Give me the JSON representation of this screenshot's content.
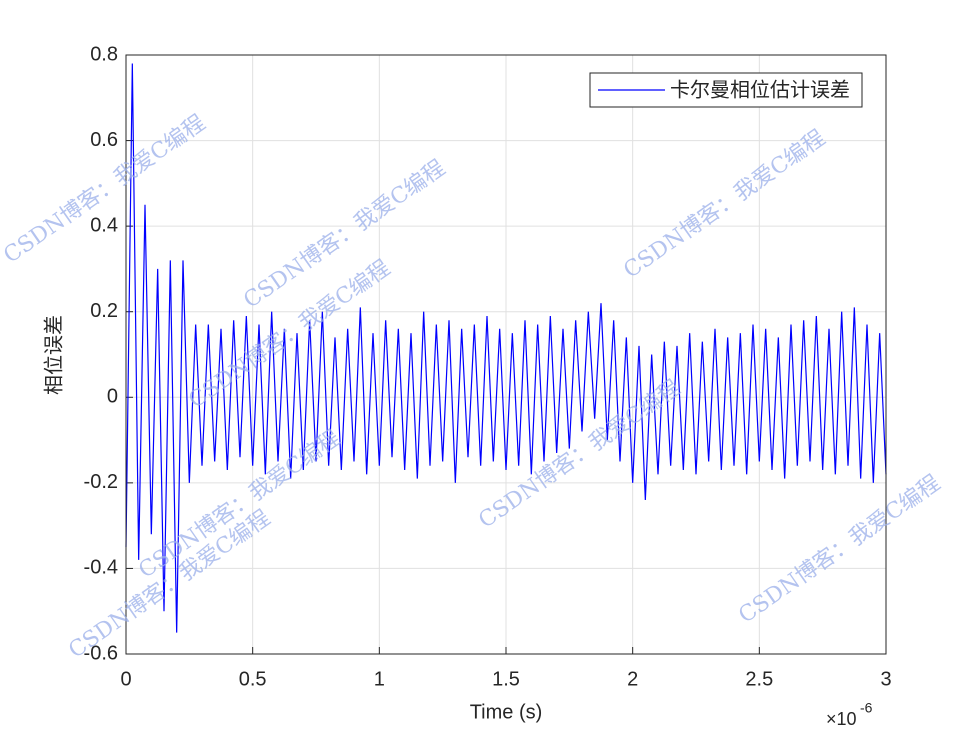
{
  "chart_data": {
    "type": "line",
    "x_label": "Time (s)",
    "y_label": "相位误差",
    "x_multiplier": "×10",
    "x_exponent": "-6",
    "watermark": "CSDN博客：我爱C编程",
    "legend": "top-right",
    "grid": true,
    "xlim": [
      0,
      3e-06
    ],
    "ylim": [
      -0.6,
      0.8
    ],
    "xticks": [
      0,
      {
        "value": 5e-07,
        "label": "0.5"
      },
      {
        "value": 1e-06,
        "label": "1"
      },
      {
        "value": 1.5e-06,
        "label": "1.5"
      },
      {
        "value": 2e-06,
        "label": "2"
      },
      {
        "value": 2.5e-06,
        "label": "2.5"
      },
      {
        "value": 3e-06,
        "label": "3"
      }
    ],
    "yticks": [
      -0.6,
      -0.4,
      -0.2,
      0,
      0.2,
      0.4,
      0.6,
      0.8
    ],
    "x": [
      0,
      2.5e-08,
      5e-08,
      7.5e-08,
      1e-07,
      1.25e-07,
      1.5e-07,
      1.75e-07,
      2e-07,
      2.25e-07,
      2.5e-07,
      2.75e-07,
      3e-07,
      3.25e-07,
      3.5e-07,
      3.75e-07,
      4e-07,
      4.25e-07,
      4.5e-07,
      4.75e-07,
      5e-07,
      5.25e-07,
      5.5e-07,
      5.75e-07,
      6e-07,
      6.25e-07,
      6.5e-07,
      6.75e-07,
      7e-07,
      7.25e-07,
      7.5e-07,
      7.75e-07,
      8e-07,
      8.25e-07,
      8.5e-07,
      8.75e-07,
      9e-07,
      9.25e-07,
      9.5e-07,
      9.75e-07,
      1e-06,
      1.025e-06,
      1.05e-06,
      1.075e-06,
      1.1e-06,
      1.125e-06,
      1.15e-06,
      1.175e-06,
      1.2e-06,
      1.225e-06,
      1.25e-06,
      1.275e-06,
      1.3e-06,
      1.325e-06,
      1.35e-06,
      1.375e-06,
      1.4e-06,
      1.425e-06,
      1.45e-06,
      1.475e-06,
      1.5e-06,
      1.525e-06,
      1.55e-06,
      1.575e-06,
      1.6e-06,
      1.625e-06,
      1.65e-06,
      1.675e-06,
      1.7e-06,
      1.725e-06,
      1.75e-06,
      1.775e-06,
      1.8e-06,
      1.825e-06,
      1.85e-06,
      1.875e-06,
      1.9e-06,
      1.925e-06,
      1.95e-06,
      1.975e-06,
      2e-06,
      2.025e-06,
      2.05e-06,
      2.075e-06,
      2.1e-06,
      2.125e-06,
      2.15e-06,
      2.175e-06,
      2.2e-06,
      2.225e-06,
      2.25e-06,
      2.275e-06,
      2.3e-06,
      2.325e-06,
      2.35e-06,
      2.375e-06,
      2.4e-06,
      2.425e-06,
      2.45e-06,
      2.475e-06,
      2.5e-06,
      2.525e-06,
      2.55e-06,
      2.575e-06,
      2.6e-06,
      2.625e-06,
      2.65e-06,
      2.675e-06,
      2.7e-06,
      2.725e-06,
      2.75e-06,
      2.775e-06,
      2.8e-06,
      2.825e-06,
      2.85e-06,
      2.875e-06,
      2.9e-06,
      2.925e-06,
      2.95e-06,
      2.975e-06,
      3e-06
    ],
    "series": [
      {
        "name": "卡尔曼相位估计误差",
        "color": "#0000ff",
        "values": [
          -0.35,
          0.78,
          -0.38,
          0.45,
          -0.32,
          0.3,
          -0.5,
          0.32,
          -0.55,
          0.32,
          -0.2,
          0.17,
          -0.16,
          0.17,
          -0.15,
          0.16,
          -0.17,
          0.18,
          -0.14,
          0.19,
          -0.16,
          0.17,
          -0.18,
          0.2,
          -0.15,
          0.16,
          -0.19,
          0.15,
          -0.17,
          0.18,
          -0.15,
          0.2,
          -0.16,
          0.14,
          -0.17,
          0.16,
          -0.15,
          0.21,
          -0.18,
          0.15,
          -0.16,
          0.18,
          -0.14,
          0.16,
          -0.17,
          0.15,
          -0.19,
          0.2,
          -0.16,
          0.17,
          -0.15,
          0.18,
          -0.2,
          0.16,
          -0.14,
          0.17,
          -0.16,
          0.19,
          -0.15,
          0.16,
          -0.17,
          0.15,
          -0.16,
          0.18,
          -0.18,
          0.17,
          -0.15,
          0.19,
          -0.13,
          0.16,
          -0.12,
          0.18,
          -0.08,
          0.2,
          -0.05,
          0.22,
          -0.1,
          0.18,
          -0.15,
          0.14,
          -0.2,
          0.12,
          -0.24,
          0.1,
          -0.18,
          0.13,
          -0.16,
          0.12,
          -0.17,
          0.15,
          -0.18,
          0.13,
          -0.15,
          0.16,
          -0.17,
          0.14,
          -0.16,
          0.15,
          -0.18,
          0.17,
          -0.15,
          0.16,
          -0.17,
          0.14,
          -0.19,
          0.17,
          -0.16,
          0.18,
          -0.15,
          0.19,
          -0.17,
          0.16,
          -0.18,
          0.2,
          -0.16,
          0.21,
          -0.19,
          0.17,
          -0.2,
          0.15,
          -0.18
        ]
      }
    ]
  }
}
